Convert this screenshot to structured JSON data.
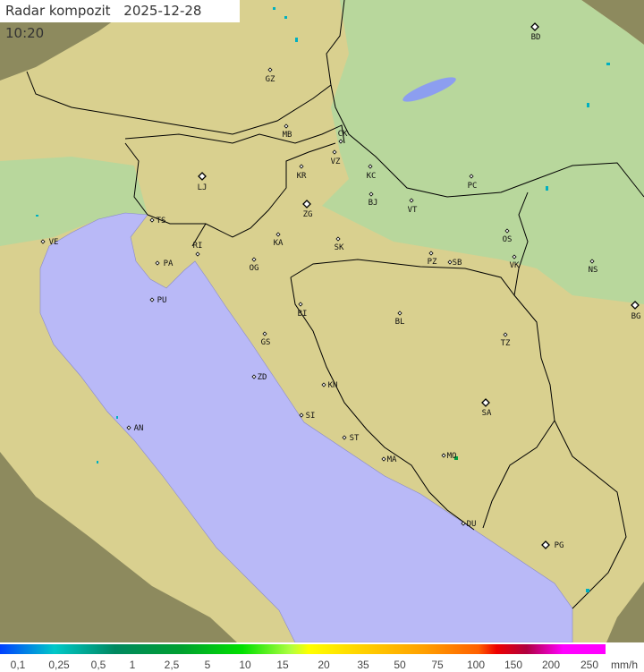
{
  "title": {
    "label": "Radar kompozit",
    "date": "2025-12-28",
    "time": "10:20"
  },
  "legend": {
    "unit": "mm/h",
    "ticks": [
      "0,1",
      "0,25",
      "0,5",
      "1",
      "2,5",
      "5",
      "10",
      "15",
      "20",
      "35",
      "50",
      "75",
      "100",
      "150",
      "200",
      "250"
    ]
  },
  "colors": {
    "sea": "#b9b9f7",
    "land": "#d9d08f",
    "plain": "#b8d79c",
    "outside": "#8d8a5e",
    "border": "#000000"
  },
  "cities": [
    {
      "code": "BD",
      "major": true
    },
    {
      "code": "GZ"
    },
    {
      "code": "MB"
    },
    {
      "code": "CK"
    },
    {
      "code": "VZ"
    },
    {
      "code": "KR"
    },
    {
      "code": "KC"
    },
    {
      "code": "PC"
    },
    {
      "code": "LJ",
      "major": true
    },
    {
      "code": "ZG",
      "major": true
    },
    {
      "code": "BJ"
    },
    {
      "code": "VT"
    },
    {
      "code": "TS"
    },
    {
      "code": "VE"
    },
    {
      "code": "RI"
    },
    {
      "code": "KA"
    },
    {
      "code": "SK"
    },
    {
      "code": "OS"
    },
    {
      "code": "PA"
    },
    {
      "code": "OG"
    },
    {
      "code": "PZ"
    },
    {
      "code": "SB"
    },
    {
      "code": "VK"
    },
    {
      "code": "NS"
    },
    {
      "code": "PU"
    },
    {
      "code": "BI"
    },
    {
      "code": "BL"
    },
    {
      "code": "BG",
      "major": true
    },
    {
      "code": "GS"
    },
    {
      "code": "TZ"
    },
    {
      "code": "ZD"
    },
    {
      "code": "KN"
    },
    {
      "code": "AN"
    },
    {
      "code": "SI"
    },
    {
      "code": "SA",
      "major": true
    },
    {
      "code": "ST"
    },
    {
      "code": "MO"
    },
    {
      "code": "MA"
    },
    {
      "code": "DU"
    },
    {
      "code": "PG",
      "major": true
    }
  ]
}
